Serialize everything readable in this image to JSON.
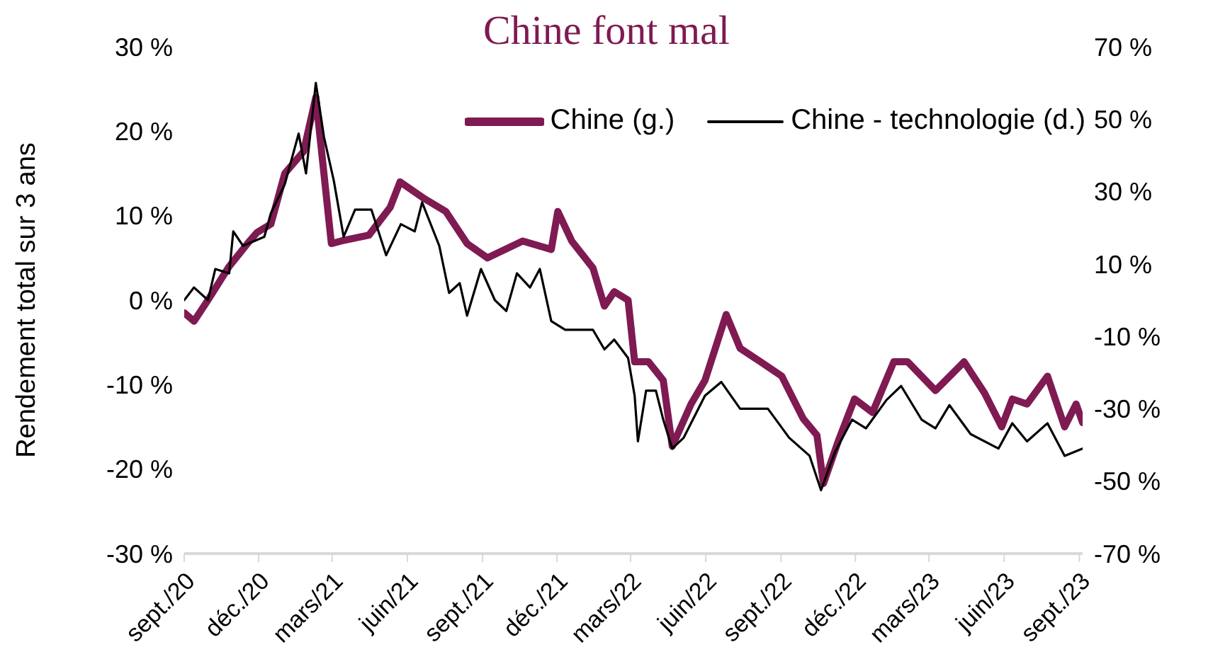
{
  "chart_data": {
    "type": "line",
    "title": "Chine font mal",
    "ylabel": "Rendement total sur 3 ans",
    "xlim": [
      "2020-09-01",
      "2023-09-05"
    ],
    "xticks": [
      {
        "value": "2020-09-01",
        "label": "sept./20"
      },
      {
        "value": "2020-12-01",
        "label": "déc./20"
      },
      {
        "value": "2021-03-01",
        "label": "mars/21"
      },
      {
        "value": "2021-06-01",
        "label": "juin/21"
      },
      {
        "value": "2021-09-01",
        "label": "sept./21"
      },
      {
        "value": "2021-12-01",
        "label": "déc./21"
      },
      {
        "value": "2022-03-01",
        "label": "mars/22"
      },
      {
        "value": "2022-06-01",
        "label": "juin/22"
      },
      {
        "value": "2022-09-01",
        "label": "sept./22"
      },
      {
        "value": "2022-12-01",
        "label": "déc./22"
      },
      {
        "value": "2023-03-01",
        "label": "mars/23"
      },
      {
        "value": "2023-06-01",
        "label": "juin/23"
      },
      {
        "value": "2023-09-01",
        "label": "sept./23"
      }
    ],
    "ylim": [
      -30,
      30
    ],
    "yticks": [
      {
        "value": -30,
        "label": "-30 %"
      },
      {
        "value": -20,
        "label": "-20 %"
      },
      {
        "value": -10,
        "label": "-10 %"
      },
      {
        "value": 0,
        "label": "0 %"
      },
      {
        "value": 10,
        "label": "10 %"
      },
      {
        "value": 20,
        "label": "20 %"
      },
      {
        "value": 30,
        "label": "30 %"
      }
    ],
    "y2lim": [
      -70,
      70
    ],
    "y2ticks": [
      {
        "value": -70,
        "label": "-70 %"
      },
      {
        "value": -50,
        "label": "-50 %"
      },
      {
        "value": -30,
        "label": "-30 %"
      },
      {
        "value": -10,
        "label": "-10 %"
      },
      {
        "value": 10,
        "label": "10 %"
      },
      {
        "value": 30,
        "label": "30 %"
      },
      {
        "value": 50,
        "label": "50 %"
      },
      {
        "value": 70,
        "label": "70 %"
      }
    ],
    "grid": false,
    "legend": "top right",
    "marker": "none",
    "series": [
      {
        "name": "Chine (g.)",
        "color": "#7f1a52",
        "x": [
          "2020-09-01",
          "2020-09-13",
          "2020-09-30",
          "2020-10-26",
          "2020-11-20",
          "2020-11-29",
          "2020-12-16",
          "2021-01-02",
          "2021-01-25",
          "2021-02-09",
          "2021-02-28",
          "2021-03-12",
          "2021-04-15",
          "2021-05-11",
          "2021-05-23",
          "2021-06-22",
          "2021-07-18",
          "2021-08-13",
          "2021-09-07",
          "2021-10-20",
          "2021-11-24",
          "2021-12-02",
          "2021-12-19",
          "2022-01-14",
          "2022-01-28",
          "2022-02-09",
          "2022-02-26",
          "2022-03-06",
          "2022-03-23",
          "2022-04-10",
          "2022-04-21",
          "2022-05-14",
          "2022-05-31",
          "2022-06-26",
          "2022-07-13",
          "2022-08-07",
          "2022-09-02",
          "2022-09-28",
          "2022-10-15",
          "2022-10-23",
          "2022-11-10",
          "2022-11-30",
          "2022-12-22",
          "2023-01-17",
          "2023-02-03",
          "2023-03-09",
          "2023-04-13",
          "2023-05-08",
          "2023-05-29",
          "2023-06-11",
          "2023-06-29",
          "2023-07-24",
          "2023-08-14",
          "2023-08-28",
          "2023-09-05"
        ],
        "values": [
          -1.5,
          -2.5,
          0,
          4,
          7,
          8,
          9,
          15,
          17.6,
          24,
          6.7,
          7,
          7.7,
          11,
          14,
          12,
          10.5,
          6.7,
          5,
          7,
          6,
          10.5,
          7,
          3.8,
          -0.7,
          1,
          0,
          -7.3,
          -7.3,
          -9.5,
          -17.3,
          -12.3,
          -9.5,
          -1.7,
          -5.7,
          -7.3,
          -9,
          -14,
          -16,
          -21.7,
          -16.7,
          -11.7,
          -13.3,
          -7.3,
          -7.3,
          -10.7,
          -7.3,
          -11,
          -15,
          -11.7,
          -12.3,
          -9,
          -15,
          -12.3,
          -14.5
        ]
      },
      {
        "name": "Chine - technologie (d.)",
        "color": "#000000",
        "axis": "y2",
        "x": [
          "2020-09-01",
          "2020-09-13",
          "2020-09-30",
          "2020-10-09",
          "2020-10-26",
          "2020-10-31",
          "2020-11-12",
          "2020-12-08",
          "2020-12-16",
          "2021-01-02",
          "2021-01-19",
          "2021-01-28",
          "2021-02-09",
          "2021-02-19",
          "2021-03-03",
          "2021-03-15",
          "2021-03-29",
          "2021-04-18",
          "2021-05-06",
          "2021-05-24",
          "2021-06-10",
          "2021-06-19",
          "2021-07-10",
          "2021-07-22",
          "2021-08-04",
          "2021-08-13",
          "2021-08-30",
          "2021-09-16",
          "2021-09-30",
          "2021-10-13",
          "2021-10-29",
          "2021-11-10",
          "2021-11-24",
          "2021-12-11",
          "2021-12-28",
          "2022-01-14",
          "2022-01-28",
          "2022-02-09",
          "2022-02-26",
          "2022-03-06",
          "2022-03-10",
          "2022-03-20",
          "2022-04-01",
          "2022-04-10",
          "2022-04-21",
          "2022-05-05",
          "2022-05-31",
          "2022-06-20",
          "2022-07-13",
          "2022-08-16",
          "2022-09-11",
          "2022-10-06",
          "2022-10-20",
          "2022-11-06",
          "2022-11-27",
          "2022-12-14",
          "2023-01-08",
          "2023-01-26",
          "2023-02-20",
          "2023-03-09",
          "2023-03-26",
          "2023-04-21",
          "2023-05-25",
          "2023-06-11",
          "2023-06-29",
          "2023-07-24",
          "2023-08-14",
          "2023-09-05"
        ],
        "values": [
          0,
          3.5,
          0,
          8.6,
          7.4,
          19,
          15,
          17.5,
          24,
          32,
          46,
          35,
          60,
          45,
          33,
          17.5,
          25,
          25,
          12.4,
          21,
          19,
          27,
          15,
          2,
          4.7,
          -4.3,
          8.6,
          0,
          -3,
          7.4,
          3.5,
          8.6,
          -5.8,
          -8.2,
          -8.2,
          -8.2,
          -13.6,
          -10.9,
          -16,
          -26.4,
          -39,
          -25,
          -25,
          -33,
          -41,
          -38,
          -26.4,
          -22.6,
          -30,
          -30,
          -38,
          -43,
          -52.5,
          -42,
          -33,
          -35.4,
          -27.6,
          -23.7,
          -33,
          -35.4,
          -29,
          -37,
          -41,
          -34,
          -39,
          -34,
          -43,
          -41
        ]
      }
    ]
  }
}
